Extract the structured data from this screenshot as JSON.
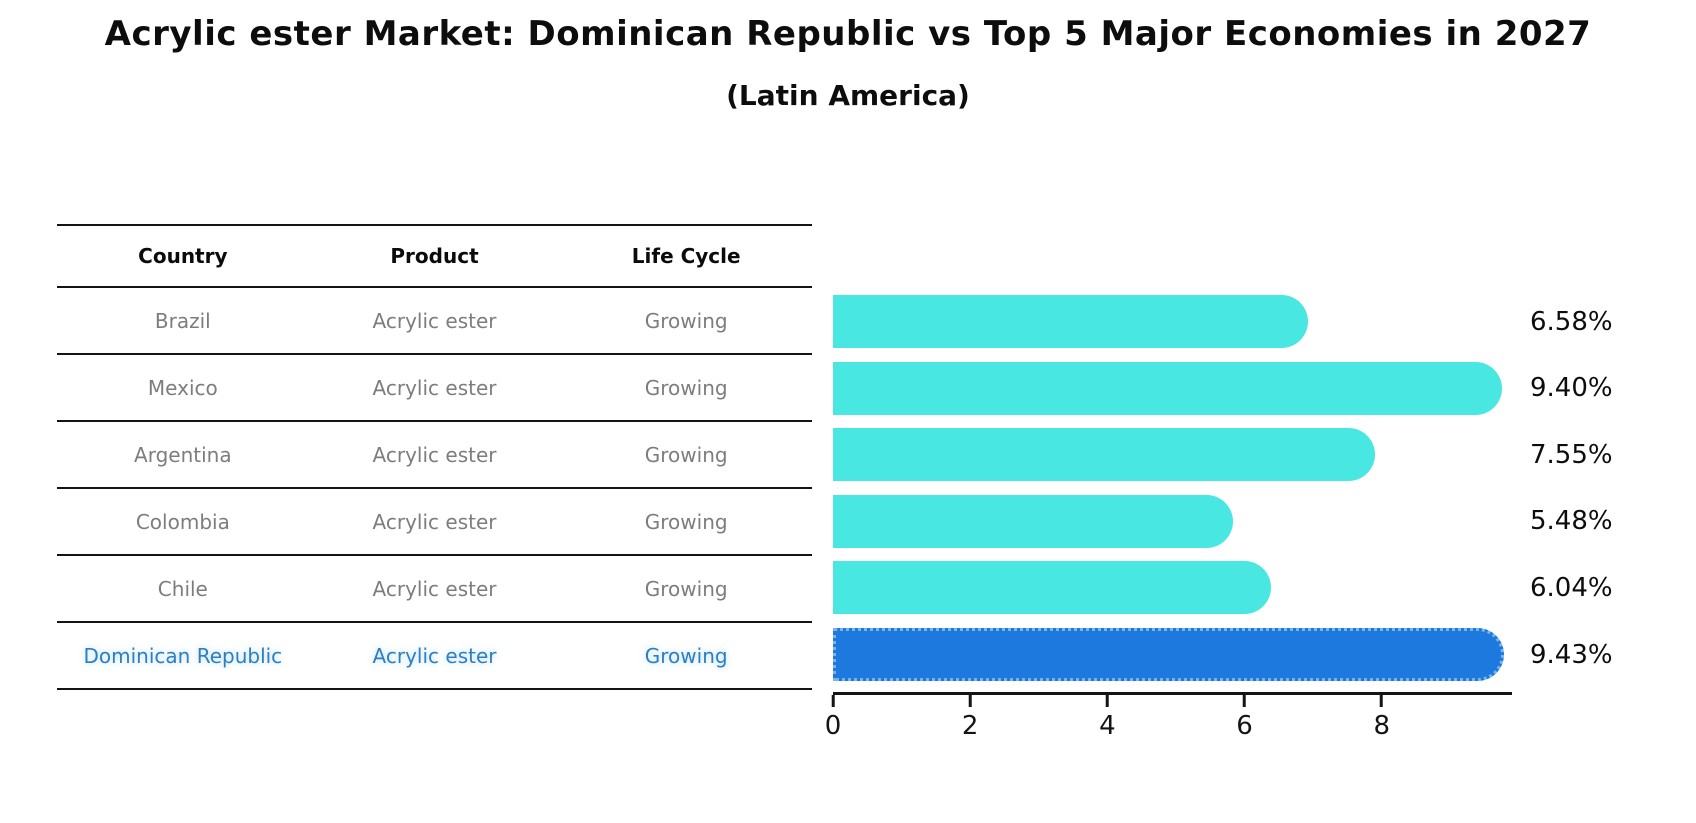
{
  "title": "Acrylic ester Market: Dominican Republic vs Top 5 Major Economies in 2027",
  "subtitle": "(Latin America)",
  "table": {
    "headers": [
      "Country",
      "Product",
      "Life Cycle"
    ],
    "rows": [
      {
        "country": "Brazil",
        "product": "Acrylic ester",
        "life_cycle": "Growing"
      },
      {
        "country": "Mexico",
        "product": "Acrylic ester",
        "life_cycle": "Growing"
      },
      {
        "country": "Argentina",
        "product": "Acrylic ester",
        "life_cycle": "Growing"
      },
      {
        "country": "Colombia",
        "product": "Acrylic ester",
        "life_cycle": "Growing"
      },
      {
        "country": "Chile",
        "product": "Acrylic ester",
        "life_cycle": "Growing"
      },
      {
        "country": "Dominican Republic",
        "product": "Acrylic ester",
        "life_cycle": "Growing"
      }
    ],
    "highlight_row_index": 5
  },
  "chart_data": {
    "type": "bar",
    "orientation": "horizontal",
    "title": "Acrylic ester Market: Dominican Republic vs Top 5 Major Economies in 2027",
    "subtitle": "(Latin America)",
    "categories": [
      "Brazil",
      "Mexico",
      "Argentina",
      "Colombia",
      "Chile",
      "Dominican Republic"
    ],
    "values": [
      6.58,
      9.4,
      7.55,
      5.48,
      6.04,
      9.43
    ],
    "value_labels": [
      "6.58%",
      "9.40%",
      "7.55%",
      "5.48%",
      "6.04%",
      "9.43%"
    ],
    "x_ticks": [
      "0",
      "2",
      "4",
      "6",
      "8"
    ],
    "x_tick_values": [
      0,
      2,
      4,
      6,
      8
    ],
    "xlim": [
      0,
      9.87
    ],
    "grid": false,
    "legend": false,
    "bar_color": "#48e7e1",
    "highlight_bar_color": "#1d79de",
    "highlight_index": 5,
    "highlight_text_color": "#2d7fc1",
    "axis_color": "#141414"
  }
}
